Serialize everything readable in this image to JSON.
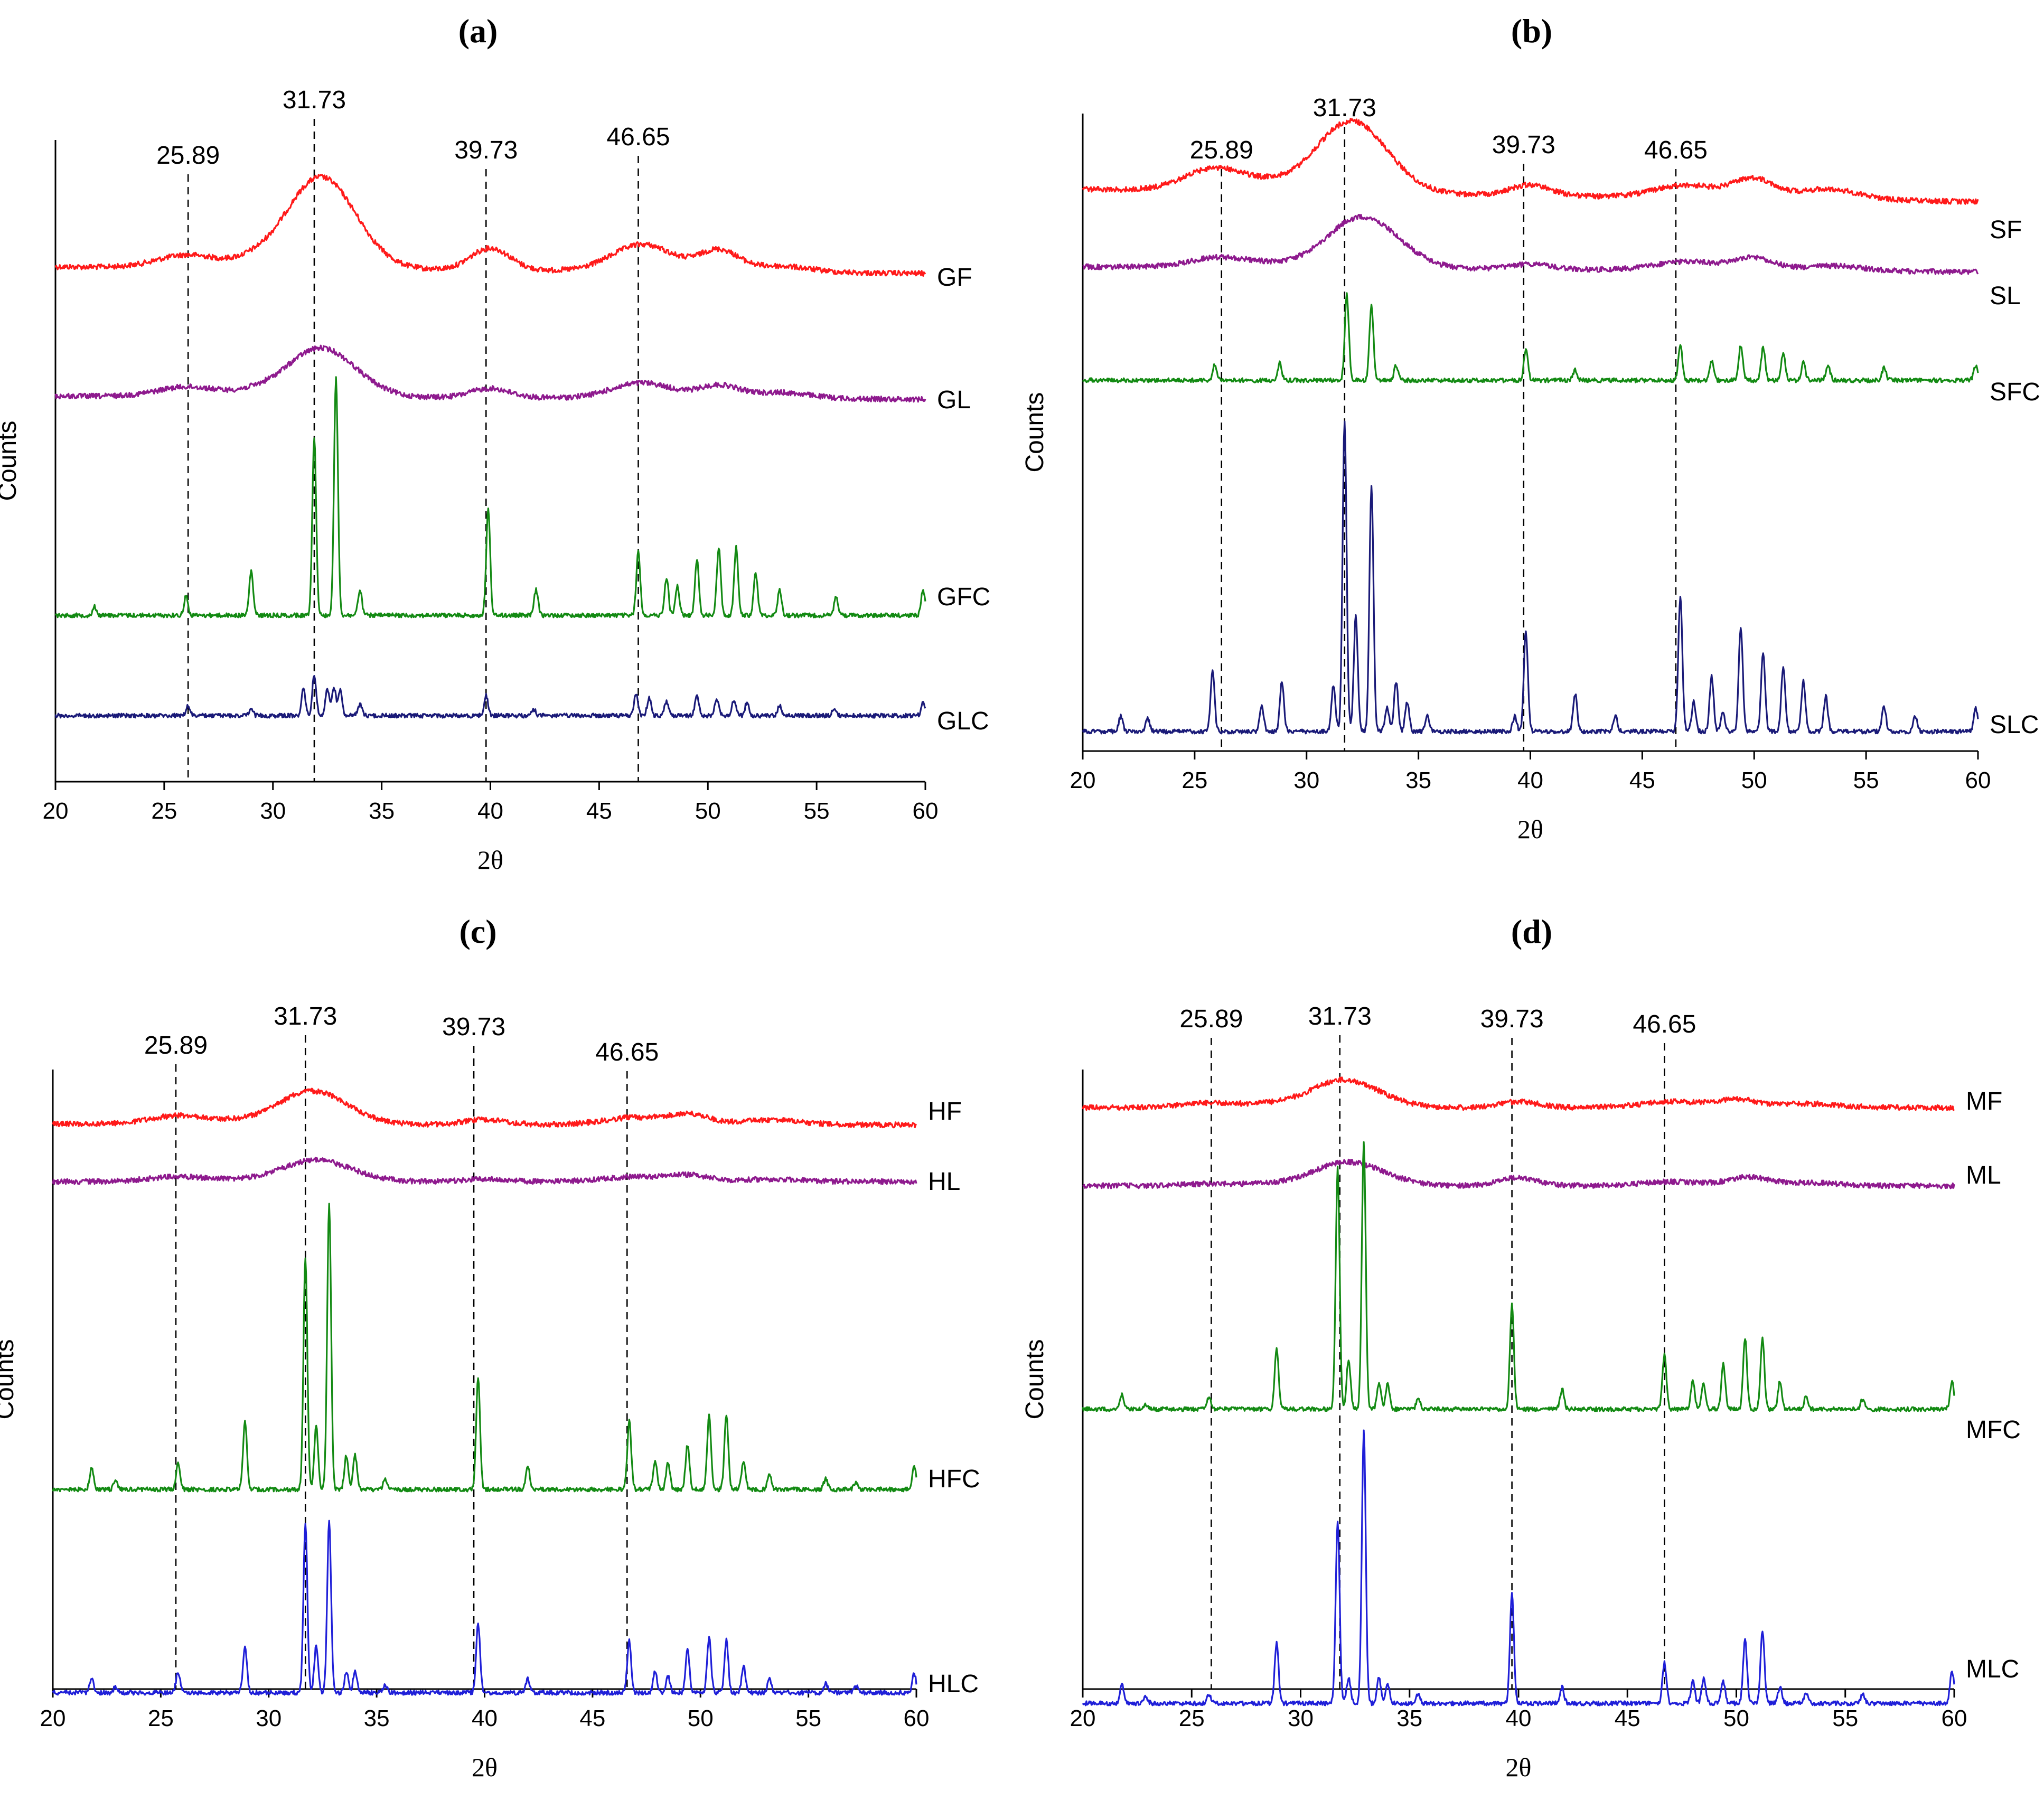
{
  "colors": {
    "F": "#ff1a1a",
    "L": "#8e1a8e",
    "FC": "#138a13",
    "LC_a": "#1a1a78",
    "LC_b": "#1a1a78",
    "LC_c": "#1f1fd8",
    "LC_d": "#1f1fd8"
  },
  "chart_data": [
    {
      "type": "line",
      "panel_label": "(a)",
      "xlabel": "2θ",
      "ylabel": "Counts",
      "xlim": [
        20,
        60
      ],
      "xticks": [
        "20",
        "25",
        "30",
        "35",
        "40",
        "45",
        "50",
        "55",
        "60"
      ],
      "reference_lines": [
        {
          "label": "25.89",
          "x": 26.1
        },
        {
          "label": "31.73",
          "x": 31.9
        },
        {
          "label": "39.73",
          "x": 39.8
        },
        {
          "label": "46.65",
          "x": 46.8
        }
      ],
      "series": [
        {
          "name": "GF",
          "kind": "F",
          "amorphous": true,
          "x": [
            20,
            26.1,
            29,
            32.2,
            40,
            47,
            50.5,
            53.3,
            60
          ],
          "values": [
            0,
            42,
            15,
            300,
            72,
            88,
            68,
            20,
            -22
          ]
        },
        {
          "name": "GL",
          "kind": "L",
          "amorphous": true,
          "x": [
            20,
            26.1,
            29,
            32.2,
            40,
            47,
            50.5,
            53.3,
            60
          ],
          "values": [
            0,
            32,
            10,
            160,
            30,
            50,
            40,
            20,
            -10
          ]
        },
        {
          "name": "GFC",
          "kind": "FC",
          "amorphous": false,
          "x": [
            21.8,
            26.0,
            29.0,
            31.9,
            32.9,
            34.0,
            39.9,
            42.1,
            46.8,
            48.1,
            48.6,
            49.5,
            50.5,
            51.3,
            52.2,
            53.3,
            55.9,
            59.9
          ],
          "values": [
            20,
            45,
            105,
            420,
            560,
            60,
            250,
            60,
            150,
            90,
            70,
            130,
            160,
            160,
            100,
            60,
            45,
            60
          ]
        },
        {
          "name": "GLC",
          "kind": "LC_a",
          "amorphous": false,
          "x": [
            26.1,
            29.0,
            31.4,
            31.9,
            32.5,
            32.8,
            33.1,
            34.0,
            39.8,
            42.0,
            46.7,
            47.3,
            48.1,
            49.5,
            50.4,
            51.2,
            51.8,
            53.3,
            55.8,
            59.9
          ],
          "values": [
            35,
            20,
            90,
            140,
            90,
            100,
            90,
            40,
            70,
            20,
            75,
            60,
            50,
            70,
            60,
            55,
            45,
            35,
            20,
            45
          ]
        }
      ],
      "series_labels": [
        "GF",
        "GL",
        "GFC",
        "GLC"
      ]
    },
    {
      "type": "line",
      "panel_label": "(b)",
      "xlabel": "2θ",
      "ylabel": "Counts",
      "xlim": [
        20,
        60
      ],
      "xticks": [
        "20",
        "25",
        "30",
        "35",
        "40",
        "45",
        "50",
        "55",
        "60"
      ],
      "reference_lines": [
        {
          "label": "25.89",
          "x": 26.2
        },
        {
          "label": "31.73",
          "x": 31.7
        },
        {
          "label": "39.73",
          "x": 39.7
        },
        {
          "label": "46.65",
          "x": 46.5
        }
      ],
      "series": [
        {
          "name": "SF",
          "kind": "F",
          "amorphous": true,
          "x": [
            20,
            26.0,
            28.5,
            32.0,
            40,
            47,
            50,
            53.3,
            60
          ],
          "values": [
            0,
            55,
            10,
            170,
            25,
            30,
            45,
            25,
            -30
          ]
        },
        {
          "name": "SL",
          "kind": "L",
          "amorphous": true,
          "x": [
            20,
            26.2,
            28.5,
            32.5,
            40,
            47,
            50,
            53.5,
            60
          ],
          "values": [
            0,
            30,
            5,
            150,
            15,
            25,
            35,
            15,
            -15
          ]
        },
        {
          "name": "SFC",
          "kind": "FC",
          "amorphous": false,
          "x": [
            25.9,
            28.8,
            31.8,
            32.9,
            34.0,
            39.8,
            42.0,
            46.7,
            48.1,
            49.4,
            50.4,
            51.3,
            52.2,
            53.3,
            55.8,
            59.9
          ],
          "values": [
            30,
            35,
            170,
            150,
            30,
            60,
            20,
            70,
            40,
            70,
            65,
            55,
            35,
            30,
            25,
            30
          ]
        },
        {
          "name": "SLC",
          "kind": "LC_b",
          "amorphous": false,
          "x": [
            21.7,
            22.9,
            25.8,
            28.0,
            28.9,
            31.2,
            31.7,
            32.2,
            32.9,
            33.6,
            34.0,
            34.5,
            35.4,
            39.3,
            39.8,
            42.0,
            43.8,
            46.7,
            47.3,
            48.1,
            48.6,
            49.4,
            50.4,
            51.3,
            52.2,
            53.2,
            55.8,
            57.2,
            59.9
          ],
          "values": [
            30,
            25,
            120,
            50,
            100,
            90,
            620,
            230,
            490,
            50,
            100,
            60,
            30,
            30,
            200,
            75,
            30,
            270,
            60,
            110,
            40,
            210,
            160,
            130,
            100,
            70,
            50,
            30,
            45
          ]
        }
      ],
      "series_labels": [
        "SF",
        "SL",
        "SFC",
        "SLC"
      ]
    },
    {
      "type": "line",
      "panel_label": "(c)",
      "xlabel": "2θ",
      "ylabel": "Counts",
      "xlim": [
        20,
        60
      ],
      "xticks": [
        "20",
        "25",
        "30",
        "35",
        "40",
        "45",
        "50",
        "55",
        "60"
      ],
      "reference_lines": [
        {
          "label": "25.89",
          "x": 25.7
        },
        {
          "label": "31.73",
          "x": 31.7
        },
        {
          "label": "39.73",
          "x": 39.5
        },
        {
          "label": "46.65",
          "x": 46.6
        }
      ],
      "series": [
        {
          "name": "HF",
          "kind": "F",
          "amorphous": true,
          "x": [
            20,
            25.9,
            28.5,
            32.0,
            40,
            47,
            49.5,
            53.2,
            60
          ],
          "values": [
            0,
            18,
            3,
            70,
            10,
            15,
            20,
            10,
            -2
          ]
        },
        {
          "name": "HL",
          "kind": "L",
          "amorphous": true,
          "x": [
            20,
            25.9,
            28.5,
            32.2,
            40,
            47,
            49.5,
            53.2,
            60
          ],
          "values": [
            0,
            10,
            2,
            45,
            5,
            10,
            12,
            5,
            0
          ]
        },
        {
          "name": "HFC",
          "kind": "FC",
          "amorphous": false,
          "x": [
            21.8,
            22.9,
            25.8,
            28.9,
            31.7,
            32.2,
            32.8,
            33.6,
            34.0,
            35.4,
            39.7,
            42.0,
            46.7,
            47.9,
            48.5,
            49.4,
            50.4,
            51.2,
            52.0,
            53.2,
            55.8,
            57.2,
            59.9
          ],
          "values": [
            40,
            15,
            50,
            130,
            440,
            120,
            540,
            65,
            65,
            20,
            210,
            45,
            130,
            55,
            50,
            85,
            140,
            140,
            55,
            30,
            20,
            15,
            45
          ]
        },
        {
          "name": "HLC",
          "kind": "LC_c",
          "amorphous": false,
          "x": [
            21.8,
            22.9,
            25.8,
            28.9,
            31.7,
            32.2,
            32.8,
            33.6,
            34.0,
            35.4,
            39.7,
            42.0,
            46.7,
            47.9,
            48.5,
            49.4,
            50.4,
            51.2,
            52.0,
            53.2,
            55.8,
            57.2,
            59.9
          ],
          "values": [
            30,
            12,
            45,
            100,
            360,
            100,
            360,
            45,
            45,
            15,
            145,
            30,
            110,
            45,
            35,
            90,
            115,
            110,
            55,
            30,
            20,
            15,
            40
          ]
        }
      ],
      "series_labels": [
        "HF",
        "HL",
        "HFC",
        "HLC"
      ]
    },
    {
      "type": "line",
      "panel_label": "(d)",
      "xlabel": "2θ",
      "ylabel": "Counts",
      "xlim": [
        20,
        60
      ],
      "xticks": [
        "20",
        "25",
        "30",
        "35",
        "40",
        "45",
        "50",
        "55",
        "60"
      ],
      "reference_lines": [
        {
          "label": "25.89",
          "x": 25.9
        },
        {
          "label": "31.73",
          "x": 31.8
        },
        {
          "label": "39.73",
          "x": 39.7
        },
        {
          "label": "46.65",
          "x": 46.7
        }
      ],
      "series": [
        {
          "name": "MF",
          "kind": "F",
          "amorphous": true,
          "x": [
            20,
            25.9,
            28.5,
            32.0,
            40,
            47,
            50,
            53.2,
            60
          ],
          "values": [
            0,
            12,
            5,
            70,
            15,
            15,
            20,
            10,
            0
          ]
        },
        {
          "name": "ML",
          "kind": "L",
          "amorphous": true,
          "x": [
            20,
            25.9,
            28.5,
            32.2,
            40,
            47,
            50.5,
            53.2,
            60
          ],
          "values": [
            0,
            5,
            3,
            60,
            20,
            10,
            20,
            8,
            0
          ]
        },
        {
          "name": "MFC",
          "kind": "FC",
          "amorphous": false,
          "x": [
            21.8,
            22.9,
            25.8,
            28.9,
            31.7,
            32.2,
            32.9,
            33.6,
            34.0,
            35.4,
            39.7,
            42.0,
            46.7,
            48.0,
            48.5,
            49.4,
            50.4,
            51.2,
            52.0,
            53.2,
            55.8,
            59.9
          ],
          "values": [
            30,
            10,
            25,
            120,
            480,
            100,
            530,
            50,
            50,
            20,
            210,
            40,
            110,
            55,
            50,
            90,
            140,
            140,
            55,
            25,
            20,
            55
          ]
        },
        {
          "name": "MLC",
          "kind": "LC_d",
          "amorphous": false,
          "x": [
            21.8,
            22.9,
            25.8,
            28.9,
            31.7,
            32.2,
            32.9,
            33.6,
            34.0,
            35.4,
            39.7,
            42.0,
            46.7,
            48.0,
            48.5,
            49.4,
            50.4,
            51.2,
            52.0,
            53.2,
            55.8,
            59.9
          ],
          "values": [
            30,
            10,
            15,
            95,
            290,
            40,
            430,
            40,
            30,
            15,
            175,
            25,
            65,
            35,
            40,
            35,
            100,
            115,
            25,
            15,
            15,
            50
          ]
        }
      ],
      "series_labels": [
        "MF",
        "ML",
        "MFC",
        "MLC"
      ]
    }
  ]
}
